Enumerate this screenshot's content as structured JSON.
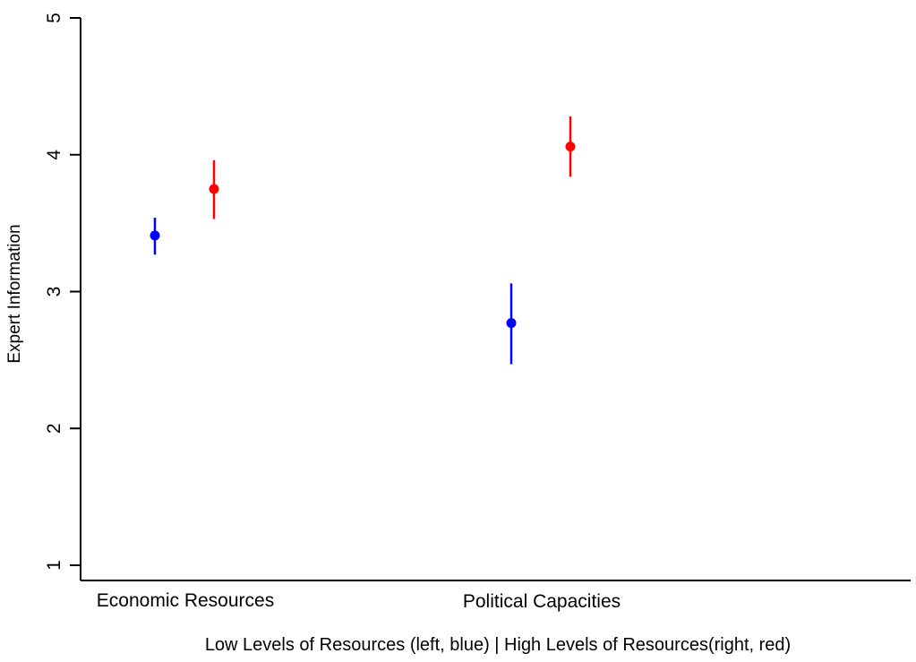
{
  "chart_data": {
    "type": "scatter",
    "xlabel": "Low Levels of Resources (left, blue) | High Levels of Resources(right, red)",
    "ylabel": "Expert Information",
    "ylim": [
      1,
      5
    ],
    "yticks": [
      "1",
      "2",
      "3",
      "4",
      "5"
    ],
    "categories": [
      "Economic Resources",
      "Political Capacities"
    ],
    "grid": false,
    "series": [
      {
        "color": "#0000ff",
        "values": [
          3.41,
          2.77
        ],
        "ci_low": [
          3.27,
          2.47
        ],
        "ci_high": [
          3.54,
          3.06
        ]
      },
      {
        "color": "#ff0000",
        "values": [
          3.75,
          4.06
        ],
        "ci_low": [
          3.53,
          3.84
        ],
        "ci_high": [
          3.96,
          4.28
        ]
      }
    ]
  }
}
